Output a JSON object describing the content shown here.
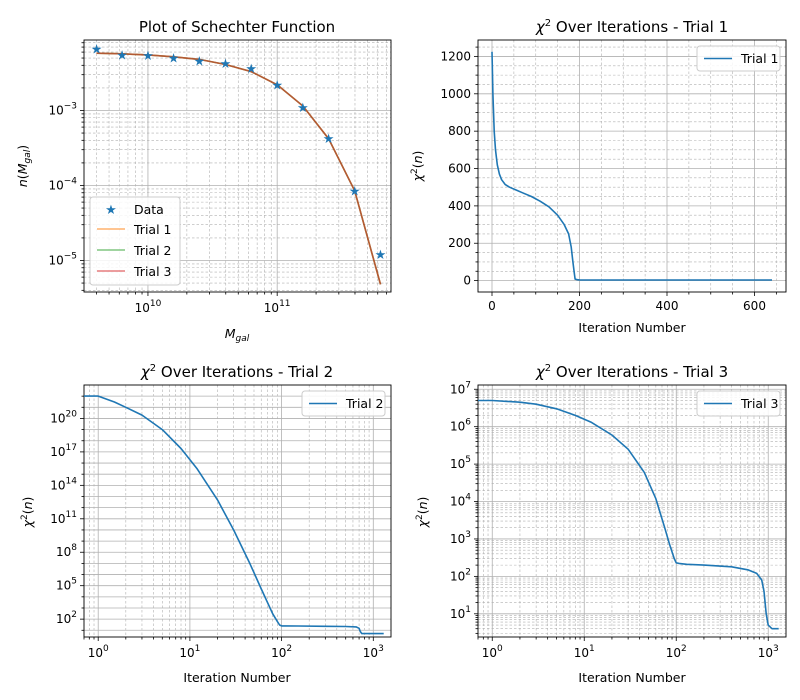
{
  "chart_data": [
    {
      "type": "line",
      "title": "Plot of Schechter Function",
      "xlabel": "M_gal",
      "ylabel": "n(M_gal)",
      "xscale": "log",
      "yscale": "log",
      "xlim": [
        3200000000.0,
        760000000000.0
      ],
      "ylim": [
        3.8e-06,
        0.0087
      ],
      "grid": true,
      "legend": "lower-left",
      "x_tick_labels": [
        {
          "mant": "10",
          "exp": "10"
        },
        {
          "mant": "10",
          "exp": "11"
        }
      ],
      "y_tick_labels": [
        {
          "mant": "10",
          "exp": "−3"
        },
        {
          "mant": "10",
          "exp": "−4"
        },
        {
          "mant": "10",
          "exp": "−5"
        }
      ],
      "series": [
        {
          "name": "Data",
          "kind": "scatter",
          "color": "#1f77b4",
          "x": [
            4000000000.0,
            6300000000.0,
            10000000000.0,
            15800000000.0,
            25000000000.0,
            39800000000.0,
            63000000000.0,
            100000000000.0,
            158000000000.0,
            250000000000.0,
            398000000000.0,
            630000000000.0
          ],
          "y": [
            0.0066,
            0.0055,
            0.0054,
            0.005,
            0.0046,
            0.0042,
            0.0036,
            0.0022,
            0.0011,
            0.00042,
            8.5e-05,
            1.2e-05
          ]
        },
        {
          "name": "Trial 1",
          "kind": "line",
          "color": "#ff7f0e",
          "alpha": 0.6
        },
        {
          "name": "Trial 2",
          "kind": "line",
          "color": "#2ca02c",
          "alpha": 0.6
        },
        {
          "name": "Trial 3",
          "kind": "line",
          "color": "#d62728",
          "alpha": 0.6
        }
      ],
      "fit_curve": {
        "x": [
          4000000000.0,
          6300000000.0,
          10000000000.0,
          15800000000.0,
          25000000000.0,
          39800000000.0,
          63000000000.0,
          100000000000.0,
          158000000000.0,
          250000000000.0,
          398000000000.0,
          630000000000.0
        ],
        "y": [
          0.0058,
          0.0057,
          0.0055,
          0.0052,
          0.0048,
          0.0041,
          0.0033,
          0.0022,
          0.00115,
          0.00042,
          8.5e-05,
          4.8e-06
        ]
      }
    },
    {
      "type": "line",
      "title": "χ² Over Iterations - Trial 1",
      "xlabel": "Iteration Number",
      "ylabel": "χ²(n)",
      "xscale": "linear",
      "yscale": "linear",
      "xlim": [
        -32,
        672
      ],
      "ylim": [
        -61,
        1288
      ],
      "x_ticks": [
        0,
        200,
        400,
        600
      ],
      "y_ticks": [
        0,
        200,
        400,
        600,
        800,
        1000,
        1200
      ],
      "grid": true,
      "legend": "top-right",
      "series": [
        {
          "name": "Trial 1",
          "color": "#1f77b4",
          "x": [
            0,
            2,
            5,
            8,
            12,
            17,
            22,
            30,
            40,
            55,
            70,
            90,
            110,
            130,
            150,
            165,
            175,
            181,
            185,
            188,
            190,
            195,
            200,
            300,
            400,
            500,
            600,
            640
          ],
          "y": [
            1225,
            1000,
            800,
            700,
            620,
            570,
            540,
            515,
            500,
            485,
            470,
            450,
            425,
            395,
            350,
            300,
            250,
            180,
            100,
            40,
            8,
            5,
            4,
            3,
            3,
            3,
            3,
            3
          ]
        }
      ]
    },
    {
      "type": "line",
      "title": "χ² Over Iterations - Trial 2",
      "xlabel": "Iteration Number",
      "ylabel": "χ²(n)",
      "xscale": "log",
      "yscale": "log",
      "xlim": [
        0.7,
        1560
      ],
      "ylim": [
        2.5,
        1e+23
      ],
      "x_tick_labels": [
        {
          "mant": "10",
          "exp": "0"
        },
        {
          "mant": "10",
          "exp": "1"
        },
        {
          "mant": "10",
          "exp": "2"
        },
        {
          "mant": "10",
          "exp": "3"
        }
      ],
      "y_tick_labels": [
        {
          "mant": "10",
          "exp": "2"
        },
        {
          "mant": "10",
          "exp": "5"
        },
        {
          "mant": "10",
          "exp": "8"
        },
        {
          "mant": "10",
          "exp": "11"
        },
        {
          "mant": "10",
          "exp": "14"
        },
        {
          "mant": "10",
          "exp": "17"
        },
        {
          "mant": "10",
          "exp": "20"
        },
        {
          "mant": "10",
          "exp": "23"
        }
      ],
      "grid": true,
      "legend": "top-right",
      "series": [
        {
          "name": "Trial 2",
          "color": "#1f77b4",
          "x": [
            0.7,
            1.0,
            1.5,
            2,
            3,
            5,
            8,
            12,
            20,
            30,
            45,
            60,
            80,
            90,
            95,
            100,
            110,
            150,
            300,
            500,
            650,
            700,
            720,
            750,
            1000,
            1300
          ],
          "y": [
            1e+22,
            1e+22,
            3e+21,
            1e+21,
            2e+20,
            1e+19,
            2e+17,
            3000000000000000.0,
            5000000000000.0,
            10000000000.0,
            10000000.0,
            50000.0,
            300.0,
            60.0,
            30.0,
            25.0,
            25.0,
            24.0,
            23.0,
            22.0,
            20.0,
            15.0,
            8,
            5,
            5,
            5
          ]
        }
      ]
    },
    {
      "type": "line",
      "title": "χ² Over Iterations - Trial 3",
      "xlabel": "Iteration Number",
      "ylabel": "χ²(n)",
      "xscale": "log",
      "yscale": "log",
      "xlim": [
        0.7,
        1560
      ],
      "ylim": [
        2.4,
        13000000.0
      ],
      "x_tick_labels": [
        {
          "mant": "10",
          "exp": "0"
        },
        {
          "mant": "10",
          "exp": "1"
        },
        {
          "mant": "10",
          "exp": "2"
        },
        {
          "mant": "10",
          "exp": "3"
        }
      ],
      "y_tick_labels": [
        {
          "mant": "10",
          "exp": "1"
        },
        {
          "mant": "10",
          "exp": "2"
        },
        {
          "mant": "10",
          "exp": "3"
        },
        {
          "mant": "10",
          "exp": "4"
        },
        {
          "mant": "10",
          "exp": "5"
        },
        {
          "mant": "10",
          "exp": "6"
        },
        {
          "mant": "10",
          "exp": "7"
        }
      ],
      "grid": true,
      "legend": "top-right",
      "series": [
        {
          "name": "Trial 3",
          "color": "#1f77b4",
          "x": [
            0.7,
            1,
            2,
            3,
            5,
            8,
            12,
            20,
            30,
            45,
            60,
            75,
            85,
            95,
            100,
            110,
            130,
            200,
            400,
            600,
            750,
            850,
            900,
            950,
            1000,
            1100,
            1300
          ],
          "y": [
            5000000.0,
            5000000.0,
            4500000.0,
            4000000.0,
            3000000.0,
            2000000.0,
            1300000.0,
            600000.0,
            250000.0,
            60000.0,
            12000.0,
            2000.0,
            700.0,
            300.0,
            230.0,
            220.0,
            210.0,
            200.0,
            180.0,
            150.0,
            120.0,
            80.0,
            40.0,
            10.0,
            5,
            4,
            4
          ]
        }
      ]
    }
  ]
}
